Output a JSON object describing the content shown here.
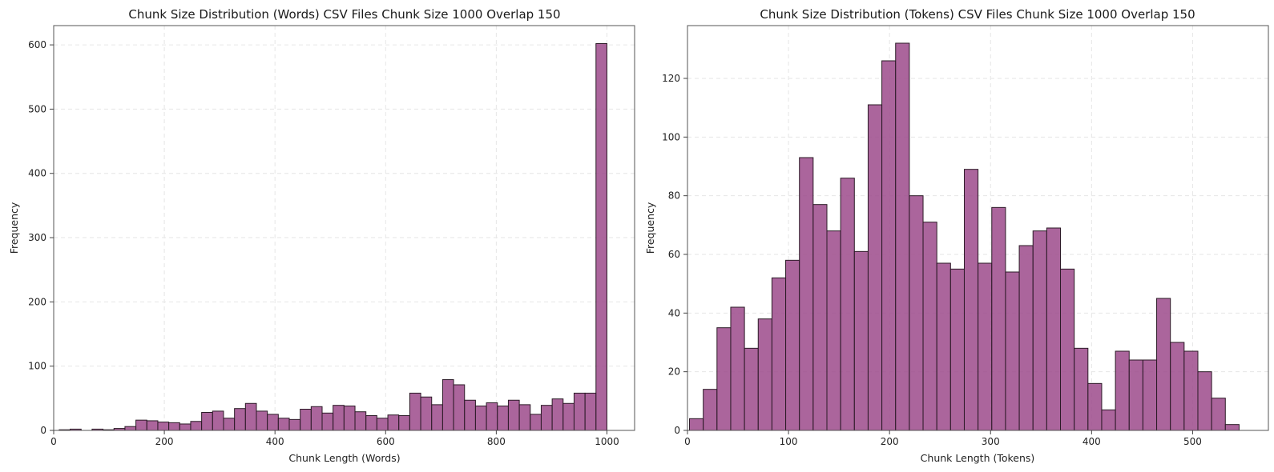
{
  "chart_data": [
    {
      "type": "bar",
      "title": "Chunk Size Distribution (Words) CSV Files Chunk Size 1000 Overlap 150",
      "xlabel": "Chunk Length (Words)",
      "ylabel": "Frequency",
      "xlim": [
        0,
        1050
      ],
      "ylim": [
        0,
        630
      ],
      "xticks": [
        0,
        200,
        400,
        600,
        800,
        1000
      ],
      "yticks": [
        0,
        100,
        200,
        300,
        400,
        500,
        600
      ],
      "bin_start": 10,
      "bin_width": 19.8,
      "values": [
        1,
        2,
        0,
        2,
        1,
        3,
        6,
        16,
        15,
        13,
        12,
        10,
        14,
        28,
        30,
        19,
        34,
        42,
        30,
        25,
        19,
        17,
        33,
        37,
        27,
        39,
        38,
        29,
        23,
        19,
        24,
        23,
        58,
        52,
        40,
        79,
        71,
        47,
        38,
        43,
        38,
        47,
        40,
        25,
        39,
        49,
        42,
        58,
        58,
        602
      ],
      "color": "#9c4a8b",
      "grid": true
    },
    {
      "type": "bar",
      "title": "Chunk Size Distribution (Tokens) CSV Files Chunk Size 1000 Overlap 150",
      "xlabel": "Chunk Length (Tokens)",
      "ylabel": "Frequency",
      "xlim": [
        0,
        575
      ],
      "ylim": [
        0,
        138
      ],
      "xticks": [
        0,
        100,
        200,
        300,
        400,
        500
      ],
      "yticks": [
        0,
        20,
        40,
        60,
        80,
        100,
        120
      ],
      "bin_start": 2,
      "bin_width": 13.6,
      "values": [
        4,
        14,
        35,
        42,
        28,
        38,
        52,
        58,
        93,
        77,
        68,
        86,
        61,
        111,
        126,
        132,
        80,
        71,
        57,
        55,
        89,
        57,
        76,
        54,
        63,
        68,
        69,
        55,
        28,
        16,
        7,
        27,
        24,
        24,
        45,
        30,
        27,
        20,
        11,
        2
      ],
      "color": "#9c4a8b",
      "grid": true
    }
  ]
}
